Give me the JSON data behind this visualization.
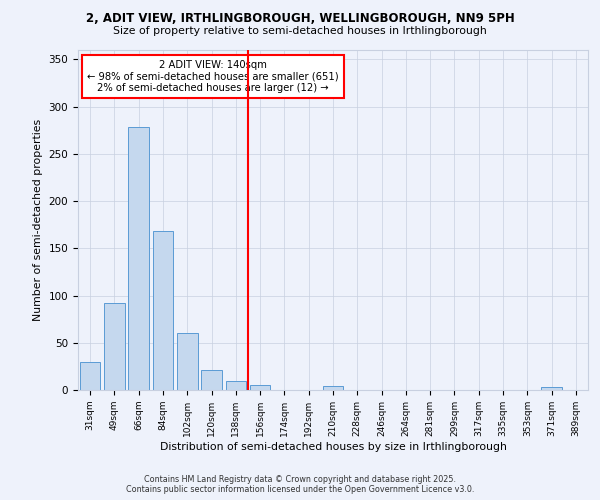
{
  "title1": "2, ADIT VIEW, IRTHLINGBOROUGH, WELLINGBOROUGH, NN9 5PH",
  "title2": "Size of property relative to semi-detached houses in Irthlingborough",
  "xlabel": "Distribution of semi-detached houses by size in Irthlingborough",
  "ylabel": "Number of semi-detached properties",
  "categories": [
    "31sqm",
    "49sqm",
    "66sqm",
    "84sqm",
    "102sqm",
    "120sqm",
    "138sqm",
    "156sqm",
    "174sqm",
    "192sqm",
    "210sqm",
    "228sqm",
    "246sqm",
    "264sqm",
    "281sqm",
    "299sqm",
    "317sqm",
    "335sqm",
    "353sqm",
    "371sqm",
    "389sqm"
  ],
  "values": [
    30,
    92,
    278,
    168,
    60,
    21,
    10,
    5,
    0,
    0,
    4,
    0,
    0,
    0,
    0,
    0,
    0,
    0,
    0,
    3,
    0
  ],
  "bar_color": "#c5d8ee",
  "bar_edge_color": "#5b9bd5",
  "vline_x": 6.5,
  "annotation_line1": "2 ADIT VIEW: 140sqm",
  "annotation_line2": "← 98% of semi-detached houses are smaller (651)",
  "annotation_line3": "2% of semi-detached houses are larger (12) →",
  "box_color": "#ff0000",
  "ylim": [
    0,
    360
  ],
  "yticks": [
    0,
    50,
    100,
    150,
    200,
    250,
    300,
    350
  ],
  "footer1": "Contains HM Land Registry data © Crown copyright and database right 2025.",
  "footer2": "Contains public sector information licensed under the Open Government Licence v3.0.",
  "bg_color": "#eef2fb",
  "grid_color": "#c8d0e0"
}
